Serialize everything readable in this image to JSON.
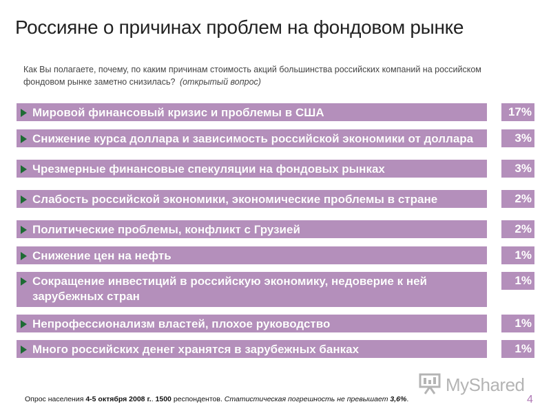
{
  "title": "Россияне о причинах проблем на фондовом рынке",
  "question": {
    "text": "Как Вы полагаете, почему, по каким причинам стоимость акций большинства российских компаний на российском фондовом рынке заметно снизилась?",
    "note": "(открытый вопрос)"
  },
  "colors": {
    "bar": "#b48fbb",
    "bullet": "#1e6b34",
    "page_number": "#b07ab6"
  },
  "chart_data": {
    "type": "bar",
    "orientation": "horizontal",
    "categories": [
      "Мировой финансовый кризис и проблемы в США",
      "Снижение курса доллара и зависимость российской экономики от доллара",
      "Чрезмерные финансовые спекуляции на фондовых рынках",
      "Слабость российской экономики, экономические проблемы в стране",
      "Политические проблемы, конфликт с Грузией",
      "Снижение цен на нефть",
      "Сокращение инвестиций в российскую экономику, недоверие к ней зарубежных стран",
      "Непрофессионализм властей, плохое руководство",
      "Много российских денег хранятся в зарубежных банках"
    ],
    "values": [
      17,
      3,
      3,
      2,
      2,
      1,
      1,
      1,
      1
    ],
    "value_labels": [
      "17%",
      "3%",
      "3%",
      "2%",
      "2%",
      "1%",
      "1%",
      "1%",
      "1%"
    ],
    "unit": "%"
  },
  "footer": {
    "prefix": "Опрос населения",
    "dates": "4-5 октября 2008 г.",
    "sep": ".",
    "count": "1500",
    "respondents": "респондентов.",
    "error_note": "Статистическая погрешность не превышает",
    "error_value": "3,6%",
    "end": "."
  },
  "page_number": "4",
  "logo": {
    "text": "MyShared",
    "icon": "presentation-board-icon"
  }
}
